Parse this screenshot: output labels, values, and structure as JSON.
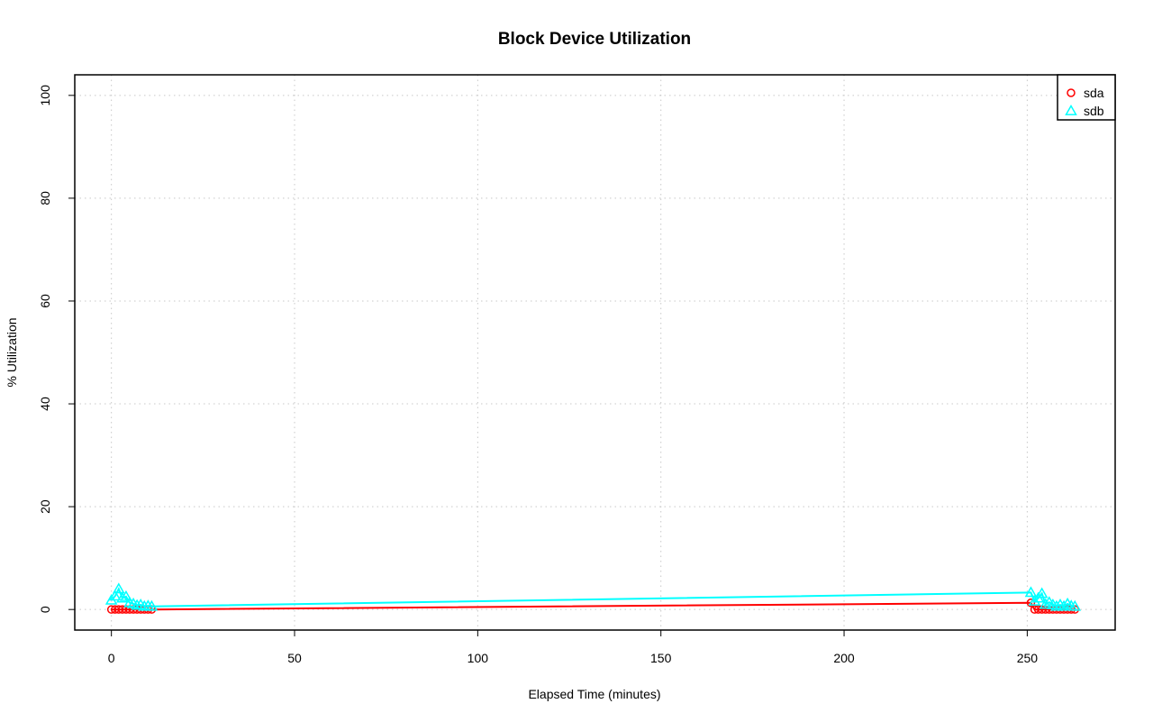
{
  "chart_data": {
    "type": "line",
    "title": "Block Device Utilization",
    "xlabel": "Elapsed Time (minutes)",
    "ylabel": "% Utilization",
    "xlim": [
      -10,
      274
    ],
    "ylim": [
      -4,
      104
    ],
    "xticks": [
      0,
      50,
      100,
      150,
      200,
      250
    ],
    "yticks": [
      0,
      20,
      40,
      60,
      80,
      100
    ],
    "grid": true,
    "legend_position": "top-right",
    "series": [
      {
        "name": "sda",
        "color": "#ff0000",
        "marker": "circle",
        "x": [
          0,
          1,
          2,
          3,
          4,
          5,
          6,
          7,
          8,
          9,
          10,
          11,
          251,
          252,
          253,
          254,
          255,
          256,
          257,
          258,
          259,
          260,
          261,
          262,
          263
        ],
        "y": [
          0.0,
          0.0,
          0.0,
          0.0,
          0.0,
          0.0,
          0.0,
          0.0,
          0.0,
          0.0,
          0.0,
          0.0,
          1.3,
          0.0,
          0.0,
          0.0,
          0.0,
          0.0,
          0.0,
          0.0,
          0.0,
          0.0,
          0.0,
          0.0,
          0.0
        ]
      },
      {
        "name": "sdb",
        "color": "#00ffff",
        "marker": "triangle",
        "x": [
          0,
          1,
          2,
          3,
          4,
          5,
          6,
          7,
          8,
          9,
          10,
          11,
          251,
          252,
          253,
          254,
          255,
          256,
          257,
          258,
          259,
          260,
          261,
          262,
          263
        ],
        "y": [
          1.8,
          2.6,
          4.0,
          2.2,
          2.5,
          1.3,
          1.1,
          0.8,
          0.9,
          0.6,
          0.7,
          0.6,
          3.3,
          1.6,
          2.2,
          3.1,
          1.0,
          1.4,
          0.9,
          0.6,
          0.9,
          0.6,
          1.1,
          0.7,
          0.6
        ]
      }
    ]
  }
}
